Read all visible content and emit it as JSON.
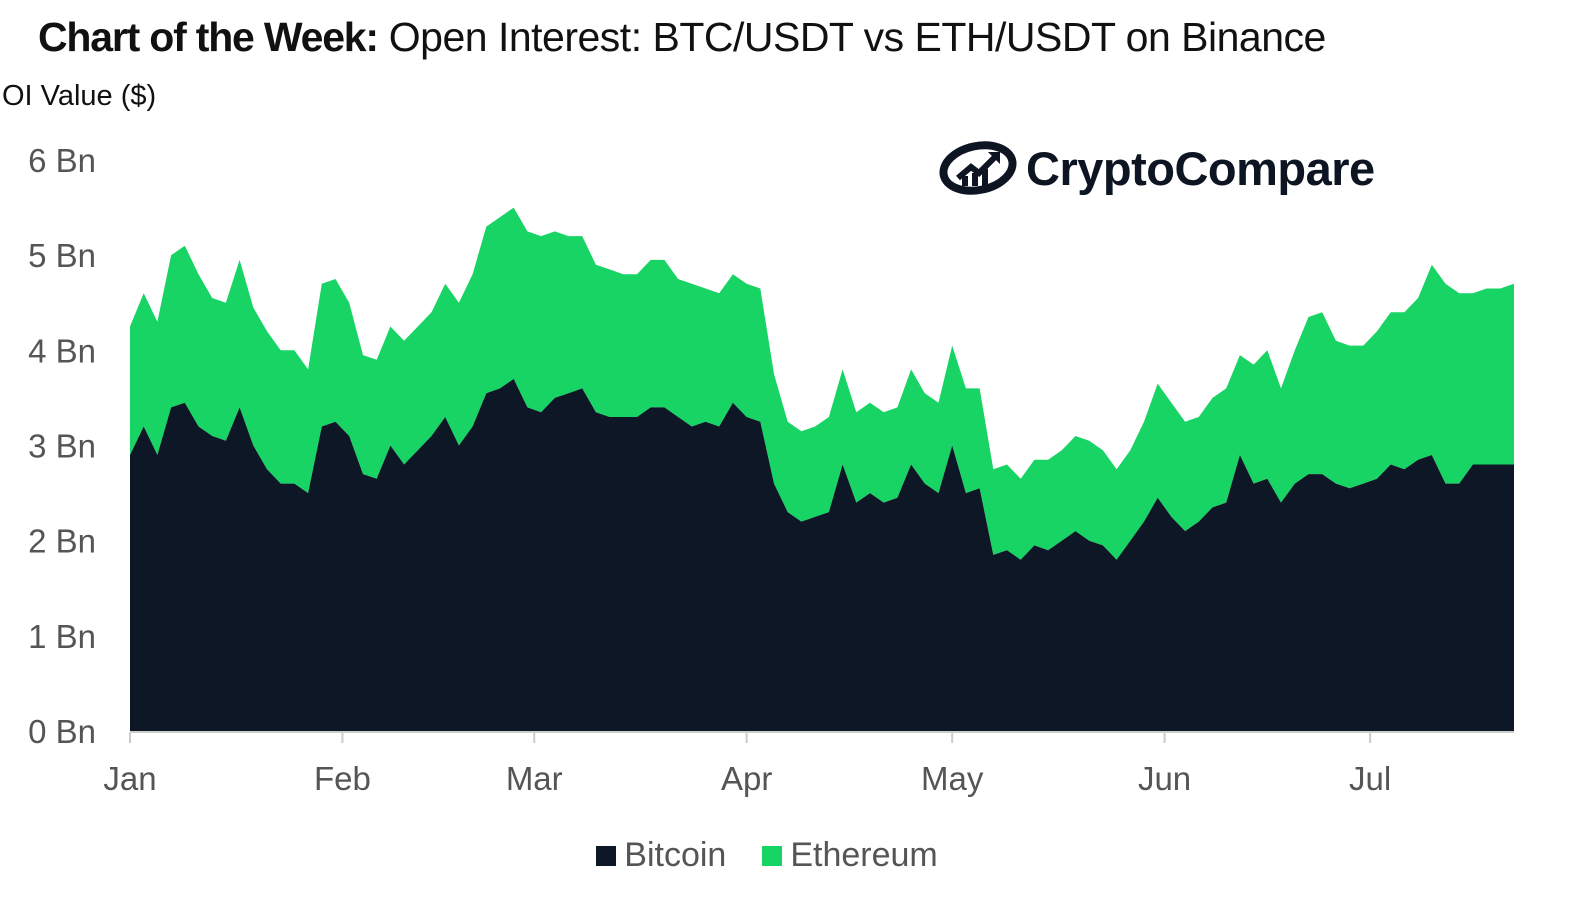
{
  "title": {
    "prefix": "Chart of the Week:",
    "main": "Open Interest: BTC/USDT vs ETH/USDT on Binance"
  },
  "logo": {
    "text": "CryptoCompare",
    "icon": "chart-up-icon"
  },
  "colors": {
    "bitcoin": "#0d1726",
    "ethereum": "#17d464",
    "axis": "#cccccc",
    "text": "#555555"
  },
  "chart_data": {
    "type": "area",
    "stacked": true,
    "ylabel": "OI Value ($)",
    "yticks": [
      "0 Bn",
      "1 Bn",
      "2 Bn",
      "3 Bn",
      "4 Bn",
      "5 Bn",
      "6 Bn"
    ],
    "ylim": [
      0,
      6
    ],
    "months": [
      "Jan",
      "Feb",
      "Mar",
      "Apr",
      "May",
      "Jun",
      "Jul"
    ],
    "month_start_days": [
      0,
      31,
      59,
      90,
      120,
      151,
      181
    ],
    "x_max_day": 202,
    "legend": [
      "Bitcoin",
      "Ethereum"
    ],
    "x": [
      0,
      2,
      4,
      6,
      8,
      10,
      12,
      14,
      16,
      18,
      20,
      22,
      24,
      26,
      28,
      30,
      32,
      34,
      36,
      38,
      40,
      42,
      44,
      46,
      48,
      50,
      52,
      54,
      56,
      58,
      60,
      62,
      64,
      66,
      68,
      70,
      72,
      74,
      76,
      78,
      80,
      82,
      84,
      86,
      88,
      90,
      92,
      94,
      96,
      98,
      100,
      102,
      104,
      106,
      108,
      110,
      112,
      114,
      116,
      118,
      120,
      122,
      124,
      126,
      128,
      130,
      132,
      134,
      136,
      138,
      140,
      142,
      144,
      146,
      148,
      150,
      152,
      154,
      156,
      158,
      160,
      162,
      164,
      166,
      168,
      170,
      172,
      174,
      176,
      178,
      180,
      182,
      184,
      186,
      188,
      190,
      192,
      194,
      196,
      198,
      200,
      202
    ],
    "series": [
      {
        "name": "Bitcoin",
        "values": [
          2.9,
          3.2,
          2.9,
          3.4,
          3.45,
          3.2,
          3.1,
          3.05,
          3.4,
          3.0,
          2.75,
          2.6,
          2.6,
          2.5,
          3.2,
          3.25,
          3.1,
          2.7,
          2.65,
          3.0,
          2.8,
          2.95,
          3.1,
          3.3,
          3.0,
          3.2,
          3.55,
          3.6,
          3.7,
          3.4,
          3.35,
          3.5,
          3.55,
          3.6,
          3.35,
          3.3,
          3.3,
          3.3,
          3.4,
          3.4,
          3.3,
          3.2,
          3.25,
          3.2,
          3.45,
          3.3,
          3.25,
          2.6,
          2.3,
          2.2,
          2.25,
          2.3,
          2.8,
          2.4,
          2.5,
          2.4,
          2.45,
          2.8,
          2.6,
          2.5,
          3.0,
          2.5,
          2.55,
          1.85,
          1.9,
          1.8,
          1.95,
          1.9,
          2.0,
          2.1,
          2.0,
          1.95,
          1.8,
          2.0,
          2.2,
          2.45,
          2.25,
          2.1,
          2.2,
          2.35,
          2.4,
          2.9,
          2.6,
          2.65,
          2.4,
          2.6,
          2.7,
          2.7,
          2.6,
          2.55,
          2.6,
          2.65,
          2.8,
          2.75,
          2.85,
          2.9,
          2.6,
          2.6,
          2.8,
          2.8,
          2.8,
          2.8
        ]
      },
      {
        "name": "Ethereum",
        "values": [
          1.35,
          1.4,
          1.4,
          1.6,
          1.65,
          1.6,
          1.45,
          1.45,
          1.55,
          1.45,
          1.45,
          1.4,
          1.4,
          1.3,
          1.5,
          1.5,
          1.4,
          1.25,
          1.25,
          1.25,
          1.3,
          1.3,
          1.3,
          1.4,
          1.5,
          1.6,
          1.75,
          1.8,
          1.8,
          1.85,
          1.85,
          1.75,
          1.65,
          1.6,
          1.55,
          1.55,
          1.5,
          1.5,
          1.55,
          1.55,
          1.45,
          1.5,
          1.4,
          1.4,
          1.35,
          1.4,
          1.4,
          1.15,
          0.95,
          0.95,
          0.95,
          1.0,
          1.0,
          0.95,
          0.95,
          0.95,
          0.95,
          1.0,
          0.95,
          0.95,
          1.05,
          1.1,
          1.05,
          0.9,
          0.9,
          0.85,
          0.9,
          0.95,
          0.95,
          1.0,
          1.05,
          1.0,
          0.95,
          0.95,
          1.05,
          1.2,
          1.2,
          1.15,
          1.1,
          1.15,
          1.2,
          1.05,
          1.25,
          1.35,
          1.2,
          1.4,
          1.65,
          1.7,
          1.5,
          1.5,
          1.45,
          1.55,
          1.6,
          1.65,
          1.7,
          2.0,
          2.1,
          2.0,
          1.8,
          1.85,
          1.85,
          1.9
        ]
      }
    ]
  }
}
